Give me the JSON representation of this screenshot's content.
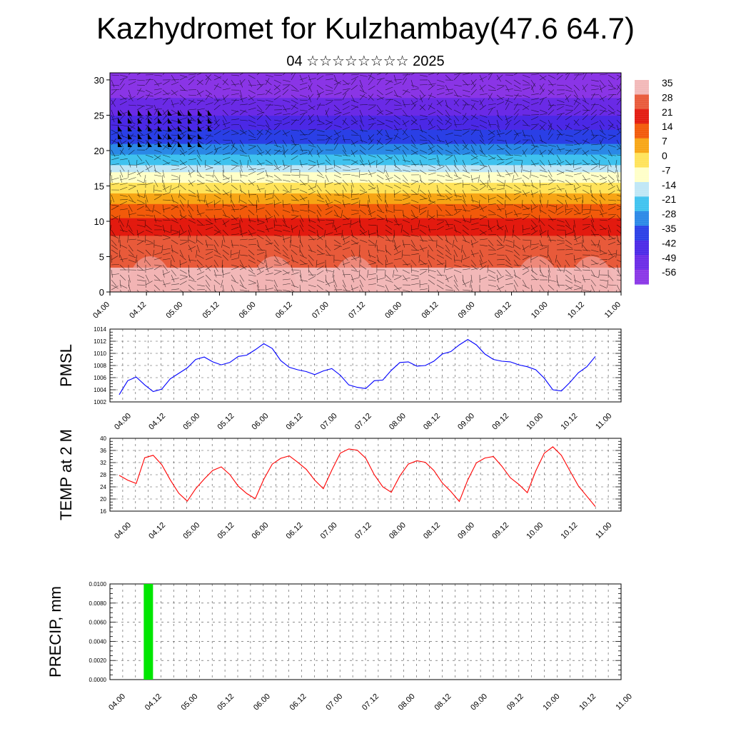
{
  "header": {
    "title": "Kazhydromet for Kulzhambay(47.6 64.7)",
    "subtitle": "04 ☆☆☆☆☆☆☆☆ 2025"
  },
  "time_labels": [
    "04.00",
    "04.12",
    "05.00",
    "05.12",
    "06.00",
    "06.12",
    "07.00",
    "07.12",
    "08.00",
    "08.12",
    "09.00",
    "09.12",
    "10.00",
    "10.12",
    "11.00"
  ],
  "chart_data": [
    {
      "type": "heatmap",
      "name_key": "cross_section",
      "ylim": [
        0,
        31
      ],
      "yticks": [
        0,
        5,
        10,
        15,
        20,
        25,
        30
      ],
      "colorbar_labels": [
        "35",
        "28",
        "21",
        "14",
        "7",
        "0",
        "-7",
        "-14",
        "-21",
        "-28",
        "-35",
        "-42",
        "-49",
        "-56"
      ],
      "colorbar_colors": [
        "#f2b8b8",
        "#e85a3a",
        "#e31a0f",
        "#f25a0a",
        "#f7a515",
        "#ffe35a",
        "#ffffc8",
        "#bfe6f5",
        "#3fc2ef",
        "#2a88e6",
        "#2a3fe6",
        "#4b28e6",
        "#6a2ae6",
        "#8a35e6"
      ],
      "temp_profile": [
        {
          "z": 0,
          "v": 30
        },
        {
          "z": 5,
          "v": 27
        },
        {
          "z": 10,
          "v": 17
        },
        {
          "z": 13,
          "v": 5
        },
        {
          "z": 15,
          "v": -5
        },
        {
          "z": 17,
          "v": -15
        },
        {
          "z": 20,
          "v": -30
        },
        {
          "z": 23,
          "v": -42
        },
        {
          "z": 26,
          "v": -52
        },
        {
          "z": 28,
          "v": -57
        },
        {
          "z": 31,
          "v": -58
        }
      ]
    },
    {
      "type": "line",
      "ylabel": "PMSL",
      "ylim": [
        1002,
        1014
      ],
      "yticks": [
        1002,
        1004,
        1006,
        1008,
        1010,
        1012,
        1014
      ],
      "color": "#0000ff",
      "values": [
        1003.2,
        1005.5,
        1006.1,
        1004.8,
        1003.7,
        1004.1,
        1005.8,
        1006.7,
        1007.6,
        1009.0,
        1009.4,
        1008.6,
        1008.1,
        1008.5,
        1009.5,
        1009.7,
        1010.6,
        1011.6,
        1010.8,
        1008.8,
        1007.7,
        1007.3,
        1007.0,
        1006.5,
        1007.1,
        1007.5,
        1006.4,
        1004.8,
        1004.4,
        1004.2,
        1005.5,
        1005.6,
        1007.2,
        1008.5,
        1008.6,
        1007.9,
        1008.0,
        1008.7,
        1009.9,
        1010.3,
        1011.4,
        1012.3,
        1011.4,
        1009.9,
        1009.0,
        1008.7,
        1008.6,
        1008.1,
        1007.8,
        1007.3,
        1005.9,
        1004.0,
        1003.8,
        1005.2,
        1006.8,
        1007.8,
        1009.5
      ]
    },
    {
      "type": "line",
      "ylabel": "TEMP at 2 M",
      "ylim": [
        16,
        40
      ],
      "yticks": [
        16,
        20,
        24,
        28,
        32,
        36,
        40
      ],
      "color": "#ff0000",
      "values": [
        27.8,
        26.2,
        25.1,
        33.6,
        34.4,
        31.3,
        26.3,
        21.9,
        19.3,
        23.4,
        26.6,
        29.4,
        30.6,
        28.1,
        24.2,
        21.8,
        20.1,
        26.5,
        31.5,
        33.4,
        34.2,
        32.1,
        29.8,
        26.2,
        23.4,
        29.5,
        35.1,
        36.5,
        36.1,
        33.4,
        28.0,
        24.0,
        22.2,
        27.6,
        31.5,
        32.6,
        32.1,
        29.4,
        25.3,
        22.5,
        19.2,
        26.3,
        31.9,
        33.5,
        34.0,
        30.8,
        27.0,
        24.8,
        22.1,
        29.3,
        35.1,
        37.2,
        34.4,
        29.3,
        24.3,
        20.9,
        17.5
      ]
    },
    {
      "type": "bar",
      "ylabel": "PRECIP, mm",
      "ylim": [
        0,
        0.01
      ],
      "yticks": [
        "0.0000",
        "0.0020",
        "0.0040",
        "0.0060",
        "0.0080",
        "0.0100"
      ],
      "color": "#00e600",
      "bars": [
        {
          "t": 2,
          "value": 0.01
        }
      ]
    }
  ]
}
